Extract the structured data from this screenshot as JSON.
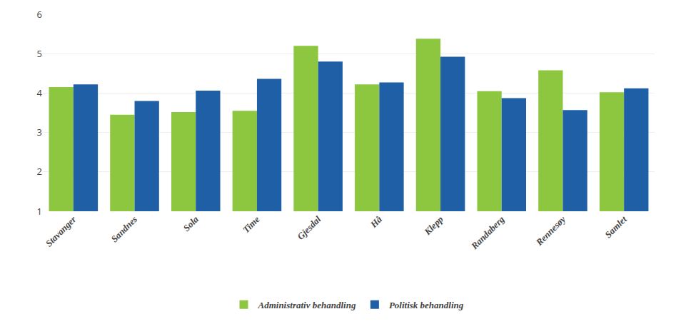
{
  "chart_data": {
    "type": "bar",
    "categories": [
      "Stavanger",
      "Sandnes",
      "Sola",
      "Time",
      "Gjesdal",
      "Hå",
      "Klepp",
      "Randaberg",
      "Rennesøy",
      "Samlet"
    ],
    "series": [
      {
        "name": "Administrativ behandling",
        "color": "#8DC63F",
        "values": [
          4.15,
          3.45,
          3.52,
          3.55,
          5.2,
          4.22,
          5.38,
          4.05,
          4.58,
          4.02
        ]
      },
      {
        "name": "Politisk behandling",
        "color": "#1F5FA6",
        "values": [
          4.22,
          3.8,
          4.06,
          4.36,
          4.8,
          4.27,
          4.92,
          3.87,
          3.57,
          4.12
        ]
      }
    ],
    "ylim": [
      1,
      6
    ],
    "yticks": [
      1,
      2,
      3,
      4,
      5,
      6
    ],
    "grid": true,
    "legend": "bottom"
  }
}
